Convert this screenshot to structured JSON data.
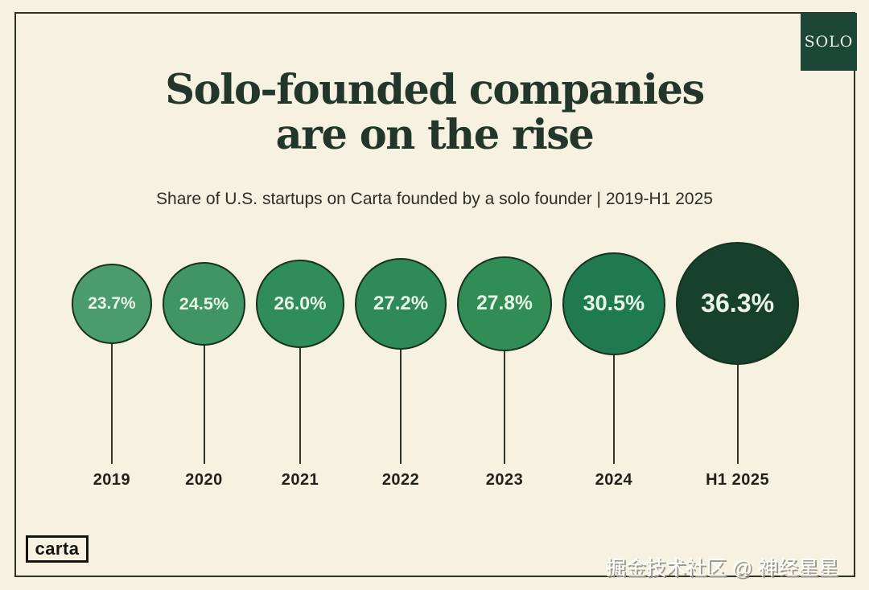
{
  "stage": {
    "background": "#F6F1E1",
    "frame_border_color": "#2E3126"
  },
  "badge": {
    "label": "SOLO",
    "background": "#1C4636",
    "text_color": "#E9F1E2"
  },
  "header": {
    "title_line1": "Solo-founded companies",
    "title_line2": "are on the rise",
    "title_color": "#22372A",
    "subtitle": "Share of U.S. startups on Carta founded by a solo founder | 2019-H1 2025"
  },
  "chart_data": {
    "type": "bar",
    "variant": "proportional-area-circles",
    "title": "Solo-founded companies are on the rise",
    "subtitle": "Share of U.S. startups on Carta founded by a solo founder | 2019-H1 2025",
    "categories": [
      "2019",
      "2020",
      "2021",
      "2022",
      "2023",
      "2024",
      "H1 2025"
    ],
    "values": [
      23.7,
      24.5,
      26.0,
      27.2,
      27.8,
      30.5,
      36.3
    ],
    "value_labels": [
      "23.7%",
      "24.5%",
      "26.0%",
      "27.2%",
      "27.8%",
      "30.5%",
      "36.3%"
    ],
    "unit": "percent",
    "colors": [
      "#4A9C6E",
      "#3F9564",
      "#2F8C5B",
      "#2E8A58",
      "#318D56",
      "#1F7A50",
      "#17402D"
    ],
    "value_label_color": "#E9F4E6",
    "category_label_color": "#21211B",
    "size_encoding": "circle diameter proportional to value",
    "legend": "none",
    "grid": false
  },
  "footer": {
    "logo_text": "carta",
    "watermark": "掘金技术社区 @ 神经星星"
  }
}
